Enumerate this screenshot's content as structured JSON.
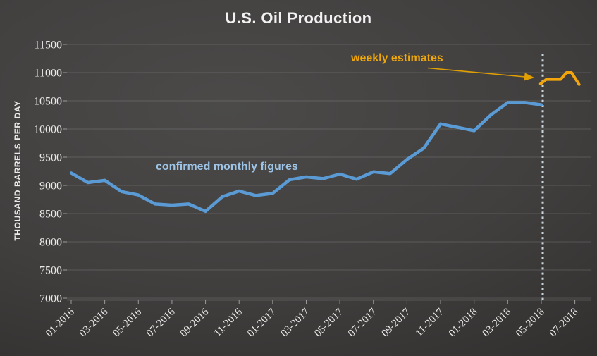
{
  "title": "U.S. Oil Production",
  "colors": {
    "background_center": "#4b4a49",
    "background_corner": "#232221",
    "title_text": "#F2F2F2",
    "axis_text": "#E9E9E9",
    "gridline": "#5a5a5a",
    "axis_line": "#ABABAB",
    "monthly_line": "#5B9BD5",
    "weekly_line": "#F2A60C",
    "monthly_label": "#9DC3E6",
    "weekly_label": "#EFA70A",
    "arrow": "#E2A000",
    "divider": "#CBD5DC"
  },
  "chart_data": {
    "type": "line",
    "title": "U.S. Oil Production",
    "xlabel": "",
    "ylabel": "THOUSAND BARRELS PER DAY",
    "ylim": [
      7000,
      11500
    ],
    "ytick_interval": 500,
    "yticks": [
      7000,
      7500,
      8000,
      8500,
      9000,
      9500,
      10000,
      10500,
      11000,
      11500
    ],
    "xtick_labels": [
      "01-2016",
      "03-2016",
      "05-2016",
      "07-2016",
      "09-2016",
      "11-2016",
      "01-2017",
      "03-2017",
      "05-2017",
      "07-2017",
      "09-2017",
      "11-2017",
      "01-2018",
      "03-2018",
      "05-2018",
      "07-2018"
    ],
    "grid": "horizontal",
    "legend": "none (inline text annotations)",
    "series": [
      {
        "name": "confirmed monthly figures",
        "color": "#5B9BD5",
        "x_labels": [
          "01-2016",
          "02-2016",
          "03-2016",
          "04-2016",
          "05-2016",
          "06-2016",
          "07-2016",
          "08-2016",
          "09-2016",
          "10-2016",
          "11-2016",
          "12-2016",
          "01-2017",
          "02-2017",
          "03-2017",
          "04-2017",
          "05-2017",
          "06-2017",
          "07-2017",
          "08-2017",
          "09-2017",
          "10-2017",
          "11-2017",
          "12-2017",
          "01-2018",
          "02-2018",
          "03-2018",
          "04-2018",
          "05-2018"
        ],
        "values": [
          9220,
          9050,
          9090,
          8890,
          8830,
          8670,
          8650,
          8670,
          8540,
          8800,
          8900,
          8820,
          8860,
          9100,
          9150,
          9120,
          9200,
          9110,
          9240,
          9210,
          9460,
          9660,
          10090,
          10030,
          9970,
          10250,
          10470,
          10470,
          10430
        ]
      },
      {
        "name": "weekly estimates",
        "color": "#F2A60C",
        "x_month_offsets": [
          27.95,
          28.3,
          28.75,
          29.15,
          29.5,
          29.8,
          30.25
        ],
        "values": [
          10800,
          10880,
          10880,
          10880,
          11000,
          11000,
          10790
        ]
      }
    ],
    "annotations": [
      {
        "text": "confirmed monthly figures",
        "color": "#9DC3E6"
      },
      {
        "text": "weekly estimates",
        "color": "#EFA70A"
      }
    ],
    "divider": {
      "style": "dotted-vertical",
      "at_x_label": "05-2018",
      "color": "#CBD5DC"
    }
  }
}
